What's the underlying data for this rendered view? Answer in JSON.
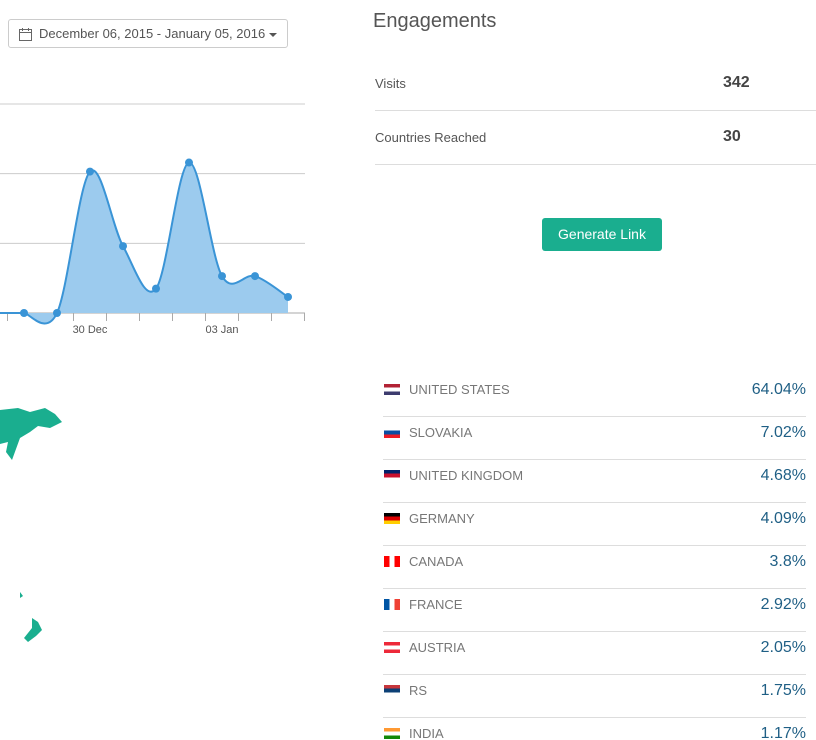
{
  "date_range": "December 06, 2015 - January 05, 2016",
  "chart_data": {
    "type": "area",
    "categories": [
      null,
      null,
      "30 Dec",
      null,
      null,
      null,
      "03 Jan",
      null,
      null
    ],
    "values": [
      0,
      0,
      2.03,
      0.96,
      0.35,
      2.16,
      0.53,
      0.53,
      0.23
    ],
    "color": "#3a94d6",
    "fill": "#9ccbee",
    "ylim": [
      0,
      3
    ],
    "yticks": [
      0,
      1,
      2,
      3
    ],
    "grid": true
  },
  "engagements": {
    "title": "Engagements",
    "rows": [
      {
        "label": "Visits",
        "value": 342
      },
      {
        "label": "Countries Reached",
        "value": 30
      }
    ],
    "button": "Generate Link"
  },
  "countries": [
    {
      "name": "UNITED STATES",
      "share": "64.04%"
    },
    {
      "name": "SLOVAKIA",
      "share": "7.02%"
    },
    {
      "name": "UNITED KINGDOM",
      "share": "4.68%"
    },
    {
      "name": "GERMANY",
      "share": "4.09%"
    },
    {
      "name": "CANADA",
      "share": "3.8%"
    },
    {
      "name": "FRANCE",
      "share": "2.92%"
    },
    {
      "name": "AUSTRIA",
      "share": "2.05%"
    },
    {
      "name": "RS",
      "share": "1.75%"
    },
    {
      "name": "INDIA",
      "share": "1.17%"
    }
  ]
}
